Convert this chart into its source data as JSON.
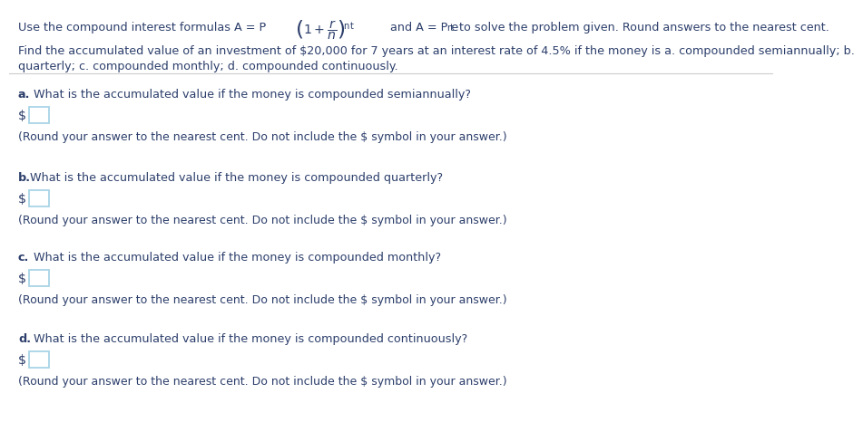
{
  "bg_color": "#ffffff",
  "text_color": "#3d3d3d",
  "dark_blue": "#2c3e6b",
  "hint_color": "#2c3e6b",
  "question_color": "#2c3e6b",
  "box_edge_color": "#a8d4e6",
  "divider_color": "#cccccc",
  "font_size_header": 9.2,
  "font_size_question": 9.2,
  "font_size_hint": 9.0,
  "header1_prefix": "Use the compound interest formulas A = P",
  "header1_suffix": " and A = P e",
  "header1_end": " to solve the problem given. Round answers to the nearest cent.",
  "line2": "Find the accumulated value of an investment of $20,000 for 7 years at an interest rate of 4.5% if the money is a. compounded semiannually; b.",
  "line3": "quarterly; c. compounded monthly; d. compounded continuously.",
  "questions": [
    {
      "label": "a.",
      "question": " What is the accumulated value if the money is compounded semiannually?",
      "hint": "(Round your answer to the nearest cent. Do not include the $ symbol in your answer.)"
    },
    {
      "label": "b.",
      "question": "What is the accumulated value if the money is compounded quarterly?",
      "hint": "(Round your answer to the nearest cent. Do not include the $ symbol in your answer.)"
    },
    {
      "label": "c.",
      "question": " What is the accumulated value if the money is compounded monthly?",
      "hint": "(Round your answer to the nearest cent. Do not include the $ symbol in your answer.)"
    },
    {
      "label": "d.",
      "question": " What is the accumulated value if the money is compounded continuously?",
      "hint": "(Round your answer to the nearest cent. Do not include the $ symbol in your answer.)"
    }
  ]
}
